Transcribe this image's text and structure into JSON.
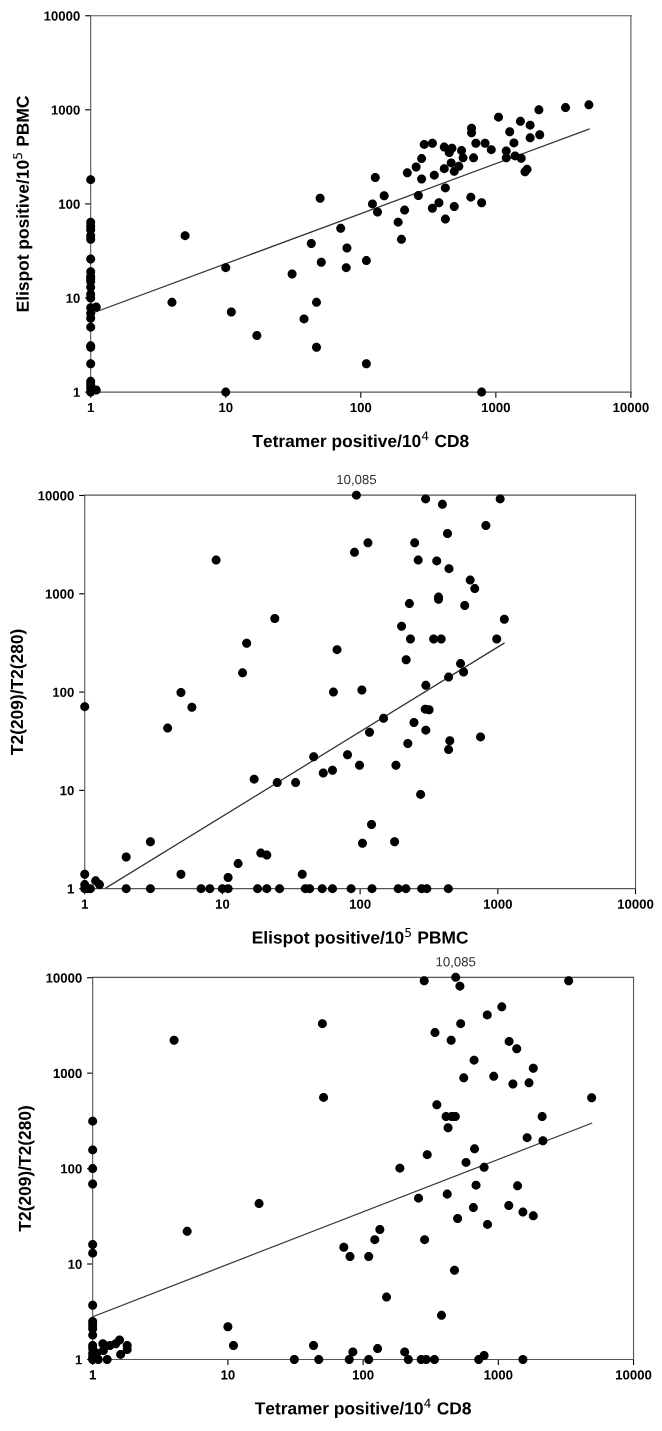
{
  "chart_data": [
    {
      "type": "scatter",
      "xlabel": "Tetramer positive/10$^{4}$ CD8",
      "ylabel": "Elispot positive/10$^{5}$ PBMC",
      "log": "xy",
      "xlim": [
        1,
        10000
      ],
      "ylim": [
        1,
        10000
      ],
      "xticks": [
        1,
        10,
        100,
        1000,
        10000
      ],
      "yticks": [
        1,
        10,
        100,
        1000,
        10000
      ],
      "grid": false,
      "series": [
        {
          "marker": "circle",
          "color": "#000000",
          "x": [
            1,
            1,
            1,
            1,
            1,
            1,
            1,
            1,
            1,
            1,
            1,
            1,
            1,
            1,
            1,
            1,
            1,
            1,
            1,
            1,
            1,
            1,
            1,
            1,
            1,
            1.1,
            1.1,
            4.0,
            5.0,
            10,
            10,
            11,
            17,
            31,
            38,
            43,
            47,
            47,
            50,
            51,
            71,
            79,
            78,
            110,
            110,
            122,
            128,
            133,
            149,
            189,
            200,
            211,
            221,
            257,
            267,
            282,
            282,
            295,
            339,
            339,
            350,
            379,
            415,
            415,
            423,
            423,
            452,
            473,
            467,
            492,
            492,
            532,
            557,
            572,
            653,
            661,
            661,
            684,
            711,
            785,
            832,
            925,
            1047,
            1194,
            1194,
            1267,
            1361,
            1388,
            1521,
            1541,
            1644,
            1702,
            1795,
            1795,
            2084,
            2113,
            3281,
            4888,
            785
          ],
          "values": [
            181,
            64,
            58,
            53,
            46,
            42,
            26,
            19,
            17,
            16,
            15,
            13,
            11,
            10,
            7.9,
            6.9,
            6.1,
            4.9,
            3.1,
            3,
            2.0,
            1.3,
            1.2,
            1.1,
            1,
            8,
            1.05,
            9.0,
            46,
            21,
            1,
            7.1,
            4.0,
            18,
            6.0,
            38,
            9.0,
            3.0,
            115,
            24,
            55,
            34,
            21,
            25,
            2.0,
            100,
            191,
            82,
            122,
            64,
            42,
            86,
            214,
            247,
            123,
            184,
            303,
            429,
            441,
            90,
            202,
            103,
            237,
            402,
            148,
            69,
            352,
            391,
            273,
            222,
            94,
            251,
            369,
            309,
            118,
            637,
            569,
            309,
            441,
            103,
            441,
            377,
            836,
            366,
            309,
            585,
            445,
            324,
            755,
            306,
            220,
            233,
            687,
            504,
            1000,
            543,
            1057,
            1130,
            1
          ]
        },
        {
          "type": "line",
          "marker": "none",
          "color": "#333333",
          "x": [
            1,
            4900
          ],
          "values": [
            6.8,
            625
          ]
        }
      ]
    },
    {
      "type": "scatter",
      "xlabel": "Elispot positive/10$^{5}$ PBMC",
      "ylabel": "T2(209)/T2(280)",
      "log": "xy",
      "xlim": [
        1,
        10000
      ],
      "ylim": [
        1,
        10085
      ],
      "xticks": [
        1,
        10,
        100,
        1000,
        10000
      ],
      "yticks": [
        1,
        10,
        100,
        1000,
        10000
      ],
      "grid": false,
      "annotations": [
        {
          "text": "10,085",
          "x": 94,
          "y": 10085
        }
      ],
      "series": [
        {
          "marker": "circle",
          "color": "#000000",
          "x": [
            1,
            1,
            1,
            1,
            1.05,
            1.1,
            1.2,
            1.28,
            2.0,
            2,
            3.0,
            3,
            4.0,
            5.0,
            5,
            6.0,
            7.0,
            8.1,
            9.0,
            10,
            11,
            11,
            13,
            14,
            15,
            17,
            18,
            19,
            21,
            21,
            24,
            25,
            26,
            34,
            38,
            40,
            43,
            46,
            53,
            54,
            63,
            63,
            64,
            68,
            81,
            86,
            91,
            94,
            99,
            103,
            104,
            114,
            117,
            121,
            122,
            148,
            178,
            182,
            189,
            200,
            215,
            216,
            222,
            228,
            232,
            246,
            249,
            264,
            275,
            280,
            305,
            299,
            300,
            297,
            317,
            300,
            342,
            360,
            371,
            371,
            388,
            396,
            431,
            437,
            439,
            442,
            448,
            439,
            536,
            564,
            575,
            630,
            680,
            749,
            819,
            982,
            1040,
            1115
          ],
          "values": [
            71,
            1.4,
            1.1,
            1,
            1,
            1,
            1.2,
            1.1,
            2.1,
            1,
            3.0,
            1,
            43,
            99,
            1.4,
            70,
            1,
            1,
            2200,
            1,
            1,
            1.3,
            1.8,
            157,
            314,
            13,
            1,
            2.3,
            2.2,
            1,
            560,
            12,
            1,
            12,
            1.4,
            1,
            1,
            22,
            1,
            15,
            16,
            1,
            100,
            270,
            23,
            1,
            2640,
            10085,
            18,
            105,
            2.9,
            3300,
            39,
            4.5,
            1,
            54,
            3.0,
            18,
            1,
            467,
            1,
            213,
            30,
            795,
            347,
            49,
            3300,
            2200,
            9.1,
            1,
            1,
            9230,
            117,
            67,
            66,
            41,
            347,
            2160,
            926,
            880,
            347,
            8130,
            4100,
            1,
            142,
            1800,
            32,
            26,
            195,
            160,
            760,
            1377,
            1130,
            35,
            4950,
            347,
            9230,
            550
          ]
        },
        {
          "type": "line",
          "marker": "none",
          "color": "#333333",
          "x": [
            1.4,
            1109
          ],
          "values": [
            1,
            314
          ]
        }
      ]
    },
    {
      "type": "scatter",
      "xlabel": "Tetramer positive/10$^{4}$ CD8",
      "ylabel": "T2(209)/T2(280)",
      "log": "xy",
      "xlim": [
        1,
        10000
      ],
      "ylim": [
        1,
        10085
      ],
      "xticks": [
        1,
        10,
        100,
        1000,
        10000
      ],
      "yticks": [
        1,
        10,
        100,
        1000,
        10000
      ],
      "grid": false,
      "annotations": [
        {
          "text": "10,085",
          "x": 484,
          "y": 10085
        }
      ],
      "series": [
        {
          "marker": "circle",
          "color": "#000000",
          "x": [
            1,
            1,
            1,
            1,
            1,
            1,
            1,
            1,
            1,
            1,
            1,
            1,
            1,
            1,
            1,
            1,
            1.07,
            1.1,
            1.19,
            1.2,
            1.28,
            1.34,
            1.48,
            1.58,
            1.61,
            1.8,
            1.8,
            4.0,
            5.0,
            10,
            11,
            17,
            31,
            43,
            47,
            50,
            51,
            72,
            79,
            80,
            84,
            110,
            110,
            122,
            128,
            133,
            149,
            187,
            203,
            216,
            257,
            269,
            283,
            285,
            293,
            298,
            337,
            340,
            351,
            380,
            411,
            419,
            425,
            448,
            453,
            481,
            474,
            484,
            500,
            520,
            527,
            555,
            577,
            654,
            662,
            667,
            684,
            716,
            785,
            785,
            832,
            828,
            925,
            1061,
            1195,
            1202,
            1282,
            1368,
            1387,
            1520,
            1520,
            1633,
            1687,
            1814,
            1814,
            2110,
            2138,
            3313,
            4900
          ],
          "values": [
            314,
            157,
            100,
            69,
            16,
            13,
            3.7,
            2.5,
            2.3,
            2.1,
            1.8,
            1.4,
            1.3,
            1.16,
            1.06,
            1,
            1.16,
            1,
            1.46,
            1.24,
            1,
            1.4,
            1.46,
            1.6,
            1.13,
            1.4,
            1.27,
            2210,
            22,
            2.2,
            1.4,
            43,
            1,
            1.4,
            1,
            3300,
            557,
            15,
            1,
            12,
            1.2,
            12,
            1,
            18,
            1.3,
            23,
            4.5,
            101,
            1.2,
            1,
            49,
            1,
            9290,
            18,
            1,
            140,
            1,
            2660,
            467,
            2.9,
            351,
            54,
            268,
            2210,
            351,
            351,
            8.6,
            10085,
            30,
            8160,
            3300,
            893,
            116,
            39,
            1368,
            161,
            67,
            1,
            1.1,
            103,
            26,
            4075,
            926,
            4950,
            41,
            2150,
            770,
            1800,
            66,
            1,
            35,
            211,
            791,
            1125,
            32,
            351,
            196,
            9290,
            552
          ]
        },
        {
          "type": "line",
          "marker": "none",
          "color": "#333333",
          "x": [
            1,
            4900
          ],
          "values": [
            2.8,
            299
          ]
        }
      ]
    }
  ]
}
